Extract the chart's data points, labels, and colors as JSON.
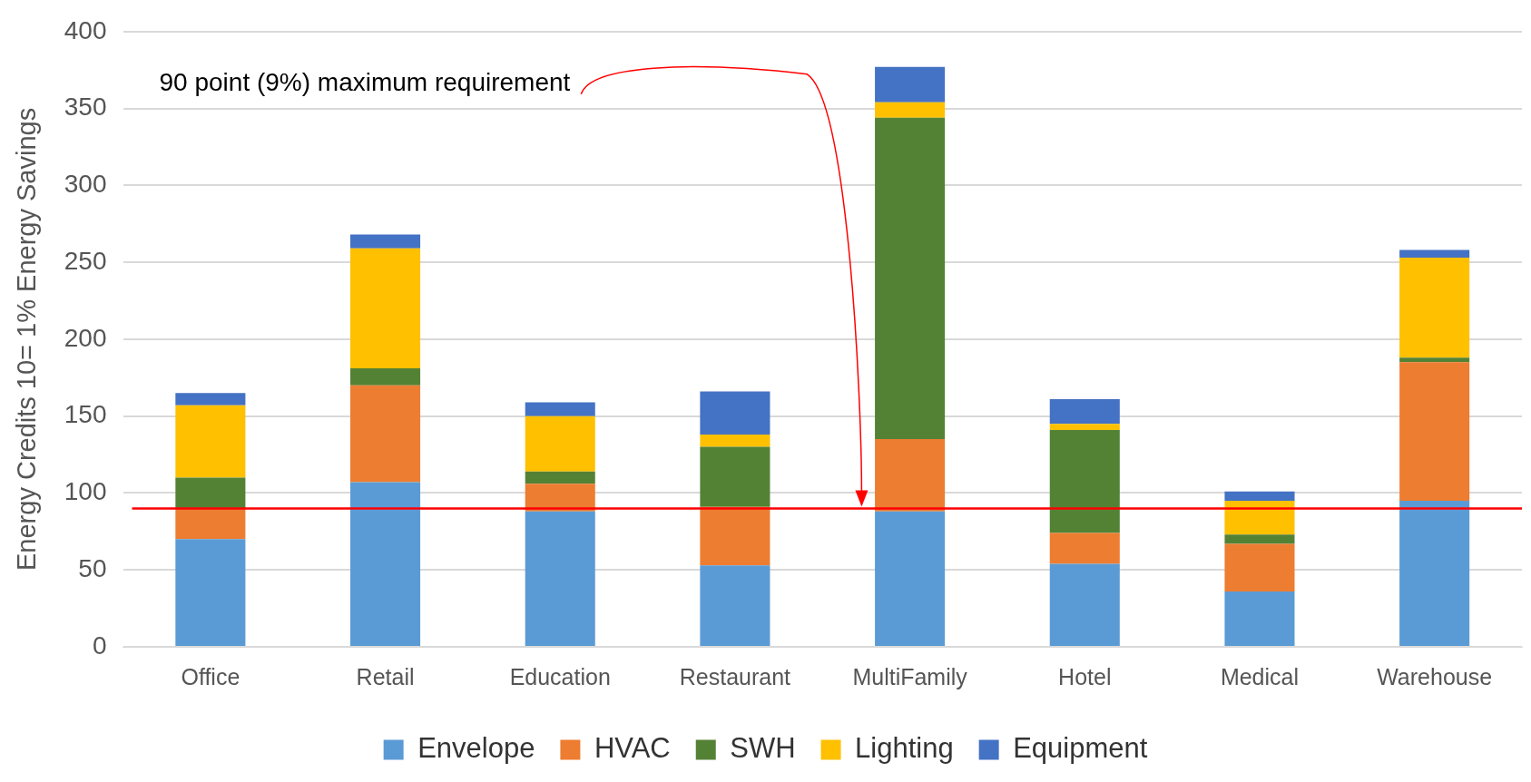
{
  "chart_data": {
    "type": "bar",
    "stacked": true,
    "ylabel": "Energy Credits 10= 1% Energy Savings",
    "categories": [
      "Office",
      "Retail",
      "Education",
      "Restaurant",
      "MultiFamily",
      "Hotel",
      "Medical",
      "Warehouse"
    ],
    "series": [
      {
        "name": "Envelope",
        "color": "#5b9bd5",
        "values": [
          70,
          107,
          88,
          53,
          88,
          54,
          36,
          95
        ]
      },
      {
        "name": "HVAC",
        "color": "#ed7d31",
        "values": [
          20,
          63,
          18,
          38,
          47,
          20,
          31,
          90
        ]
      },
      {
        "name": "SWH",
        "color": "#548235",
        "values": [
          20,
          11,
          8,
          39,
          209,
          67,
          6,
          3
        ]
      },
      {
        "name": "Lighting",
        "color": "#ffc000",
        "values": [
          47,
          78,
          36,
          8,
          10,
          4,
          22,
          65
        ]
      },
      {
        "name": "Equipment",
        "color": "#4472c4",
        "values": [
          8,
          9,
          9,
          28,
          23,
          16,
          6,
          5
        ]
      }
    ],
    "ylim": [
      0,
      400
    ],
    "yticks": [
      0,
      50,
      100,
      150,
      200,
      250,
      300,
      350,
      400
    ],
    "grid": "y",
    "legend": "bottom",
    "annotations": [
      "90 point (9%) maximum requirement"
    ],
    "ref_lines": [
      {
        "axis": "y",
        "value": 90,
        "color": "#ff0000"
      }
    ]
  }
}
